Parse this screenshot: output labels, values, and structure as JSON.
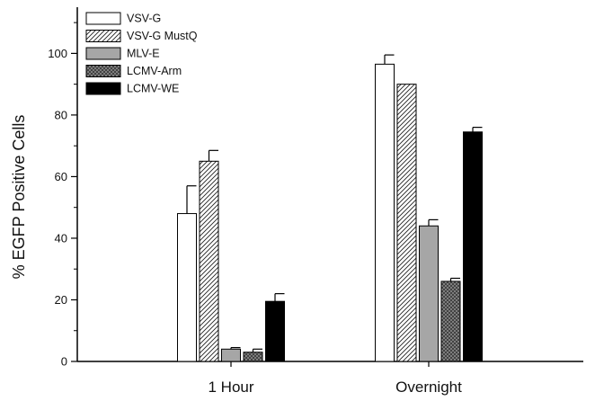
{
  "chart_data": {
    "type": "bar",
    "title": "",
    "xlabel": "",
    "ylabel": "% EGFP Positive Cells",
    "ylim": [
      0,
      115
    ],
    "yticks": [
      0,
      20,
      40,
      60,
      80,
      100
    ],
    "categories": [
      "1 Hour",
      "Overnight"
    ],
    "series": [
      {
        "name": "VSV-G",
        "values": [
          48,
          96.5
        ],
        "errors": [
          9,
          3
        ],
        "fill": "#ffffff",
        "pattern": "none"
      },
      {
        "name": "VSV-G MustQ",
        "values": [
          65,
          90
        ],
        "errors": [
          3.5,
          0
        ],
        "fill": "#ffffff",
        "pattern": "diagonal-hatch"
      },
      {
        "name": "MLV-E",
        "values": [
          4,
          44
        ],
        "errors": [
          0.5,
          2
        ],
        "fill": "#a6a6a6",
        "pattern": "none"
      },
      {
        "name": "LCMV-Arm",
        "values": [
          3,
          26
        ],
        "errors": [
          1,
          1
        ],
        "fill": "#8c8c8c",
        "pattern": "crosshatch"
      },
      {
        "name": "LCMV-WE",
        "values": [
          19.5,
          74.5
        ],
        "errors": [
          2.5,
          1.5
        ],
        "fill": "#000000",
        "pattern": "none"
      }
    ],
    "legend_position": "top-left",
    "grid": false
  }
}
